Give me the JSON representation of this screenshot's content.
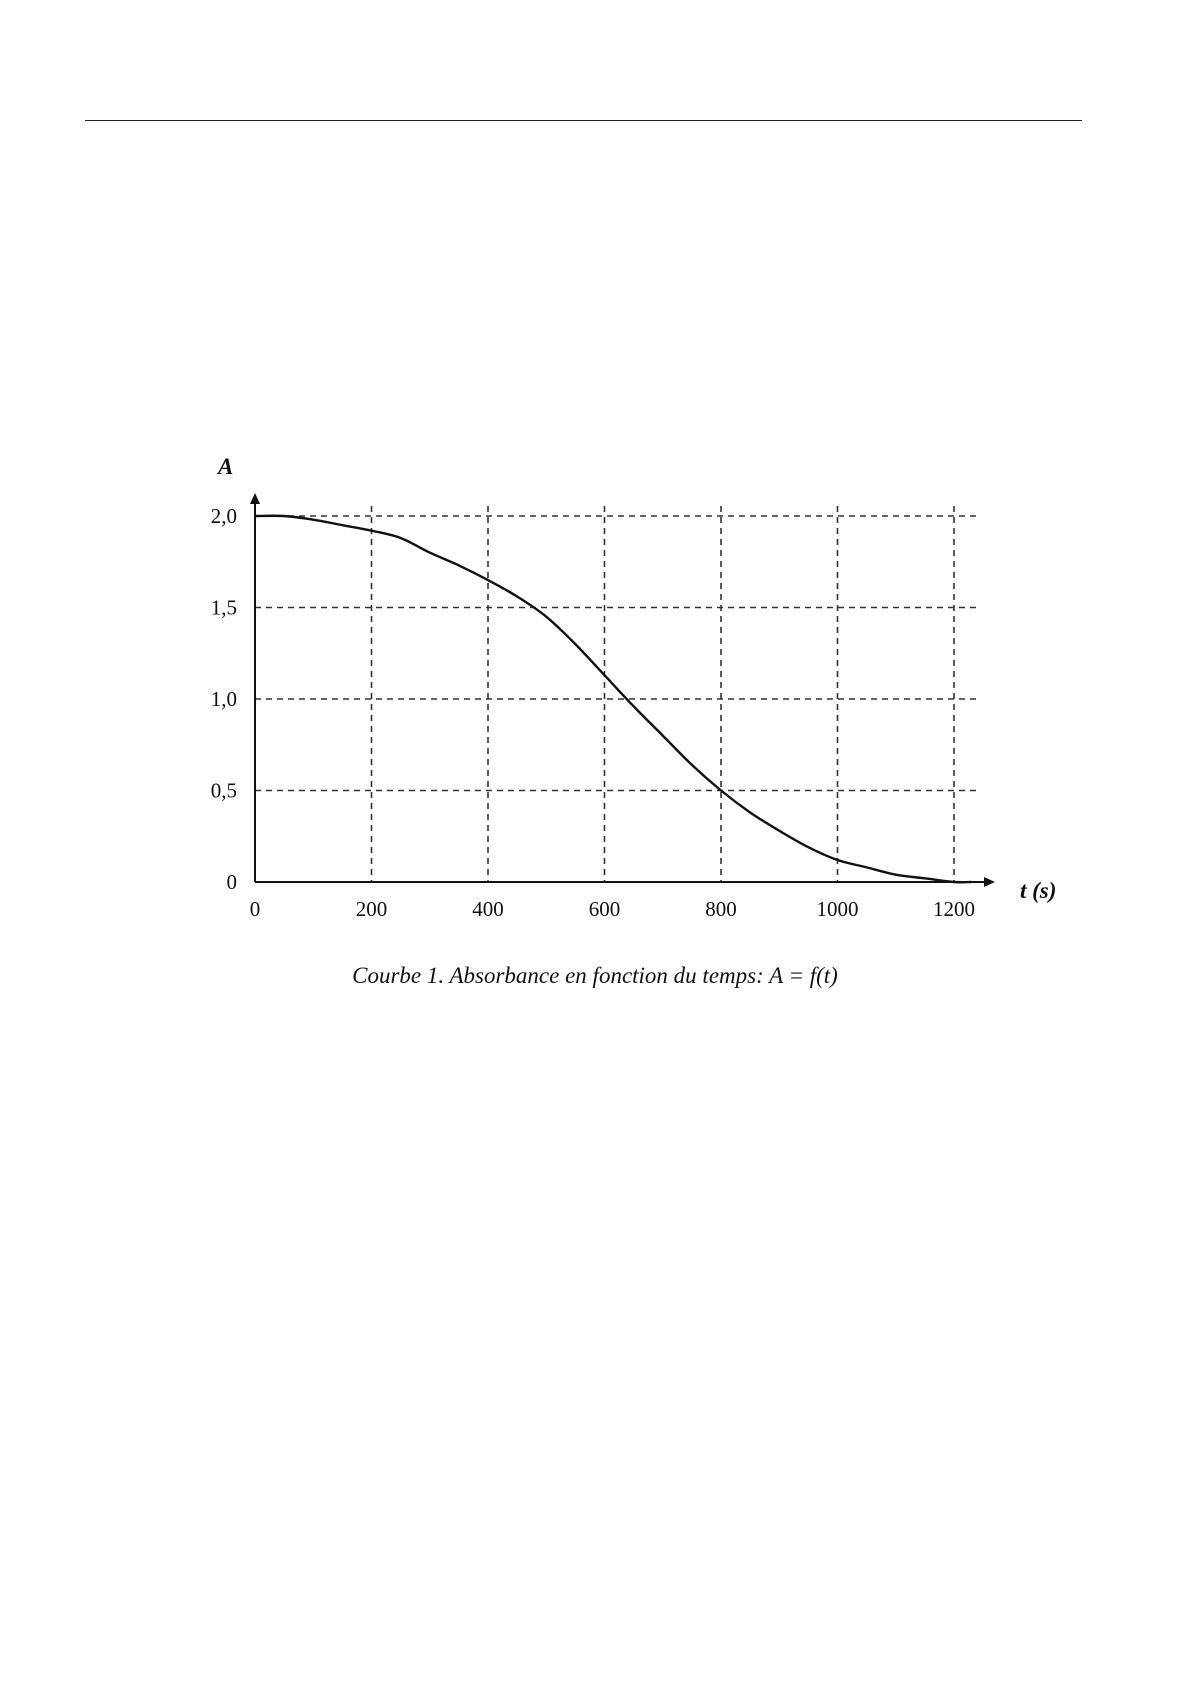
{
  "chart_data": {
    "type": "line",
    "title": "",
    "xlabel": "t (s)",
    "ylabel": "A",
    "xlim": [
      0,
      1250
    ],
    "ylim": [
      0,
      2.0
    ],
    "x_ticks": [
      0,
      200,
      400,
      600,
      800,
      1000,
      1200
    ],
    "x_tick_labels": [
      "0",
      "200",
      "400",
      "600",
      "800",
      "1000",
      "1200"
    ],
    "y_ticks": [
      0,
      0.5,
      1.0,
      1.5,
      2.0
    ],
    "y_tick_labels": [
      "0",
      "0,5",
      "1,0",
      "1,5",
      "2,0"
    ],
    "grid": true,
    "series": [
      {
        "x": [
          0,
          50,
          100,
          150,
          200,
          250,
          300,
          350,
          400,
          450,
          500,
          550,
          600,
          650,
          700,
          750,
          800,
          850,
          900,
          950,
          1000,
          1050,
          1100,
          1150,
          1200,
          1230
        ],
        "y": [
          2.0,
          2.0,
          1.98,
          1.95,
          1.92,
          1.88,
          1.8,
          1.73,
          1.65,
          1.56,
          1.45,
          1.3,
          1.13,
          0.96,
          0.8,
          0.64,
          0.5,
          0.38,
          0.28,
          0.19,
          0.12,
          0.08,
          0.04,
          0.02,
          0.0,
          0.0
        ]
      }
    ],
    "caption": "Courbe 1. Absorbance en fonction du temps: A = f(t)"
  }
}
